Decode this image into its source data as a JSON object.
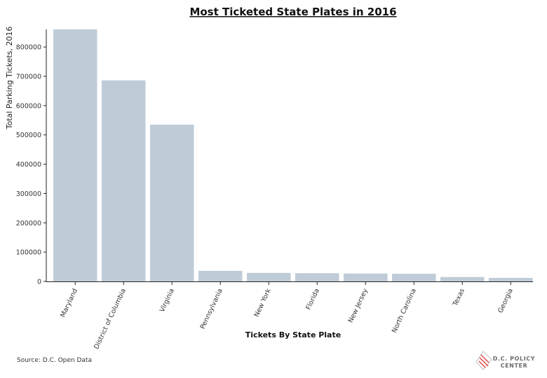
{
  "chart_data": {
    "type": "bar",
    "title": "Most Ticketed State Plates in 2016",
    "xlabel": "Tickets By State Plate",
    "ylabel": "Total Parking Tickets, 2016",
    "categories": [
      "Maryland",
      "District of Columbia",
      "Virginia",
      "Pennsylvania",
      "New York",
      "Florida",
      "New Jersey",
      "North Carolina",
      "Texas",
      "Georgia"
    ],
    "values": [
      865000,
      686000,
      535000,
      36000,
      29000,
      28000,
      27000,
      26000,
      15000,
      12000
    ],
    "ylim": [
      0,
      860000
    ],
    "yticks": [
      0,
      100000,
      200000,
      300000,
      400000,
      500000,
      600000,
      700000,
      800000
    ],
    "ytick_labels": [
      "0",
      "100000",
      "200000",
      "300000",
      "400000",
      "500000",
      "600000",
      "700000",
      "800000"
    ],
    "bar_color": "#bfccd8",
    "grid": false,
    "legend": "none"
  },
  "source": "Source: D.C. Open Data",
  "logo": {
    "line1": "D.C. POLICY",
    "line2": "CENTER",
    "accent": "#e0413b"
  }
}
